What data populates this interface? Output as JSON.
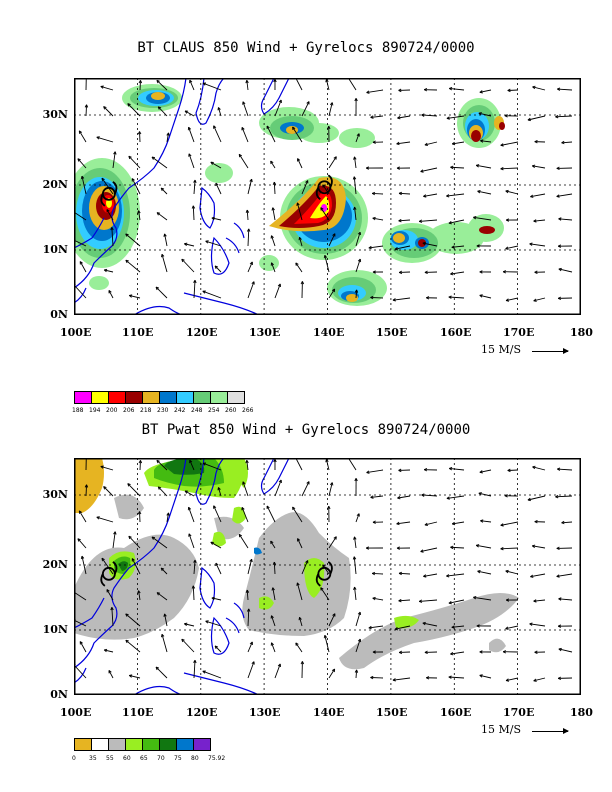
{
  "panels": [
    {
      "title": "BT CLAUS 850 Wind + Gyrelocs 890724/0000",
      "field": "CLAUS",
      "x_ticks": [
        "100E",
        "110E",
        "120E",
        "130E",
        "140E",
        "150E",
        "160E",
        "170E",
        "180"
      ],
      "y_ticks": [
        "0N",
        "10N",
        "20N",
        "30N"
      ],
      "scale_label": "15 M/S",
      "gyre_locations": [
        {
          "lon": 105.5,
          "lat": 18.5
        },
        {
          "lon": 139.5,
          "lat": 19.5
        }
      ],
      "legend": {
        "colors": [
          "#ff00ff",
          "#ffff00",
          "#ff0000",
          "#990000",
          "#e6b422",
          "#0077cc",
          "#33ccff",
          "#66cc77",
          "#99ee99",
          "#e0e0e0"
        ],
        "labels": [
          "188",
          "194",
          "200",
          "206",
          "218",
          "230",
          "242",
          "248",
          "254",
          "260",
          "266"
        ]
      }
    },
    {
      "title": "BT Pwat 850 Wind + Gyrelocs 890724/0000",
      "field": "Pwat",
      "x_ticks": [
        "100E",
        "110E",
        "120E",
        "130E",
        "140E",
        "150E",
        "160E",
        "170E",
        "180"
      ],
      "y_ticks": [
        "0N",
        "10N",
        "20N",
        "30N"
      ],
      "scale_label": "15 M/S",
      "gyre_locations": [
        {
          "lon": 105.5,
          "lat": 18.5
        },
        {
          "lon": 139.5,
          "lat": 18.5
        }
      ],
      "legend": {
        "colors": [
          "#e6b422",
          "#ffffff",
          "#bbbbbb",
          "#99ee22",
          "#44bb11",
          "#117711",
          "#0077cc",
          "#7722cc"
        ],
        "labels": [
          "0",
          "35",
          "55",
          "60",
          "65",
          "70",
          "75",
          "80",
          "75.92"
        ]
      }
    }
  ]
}
